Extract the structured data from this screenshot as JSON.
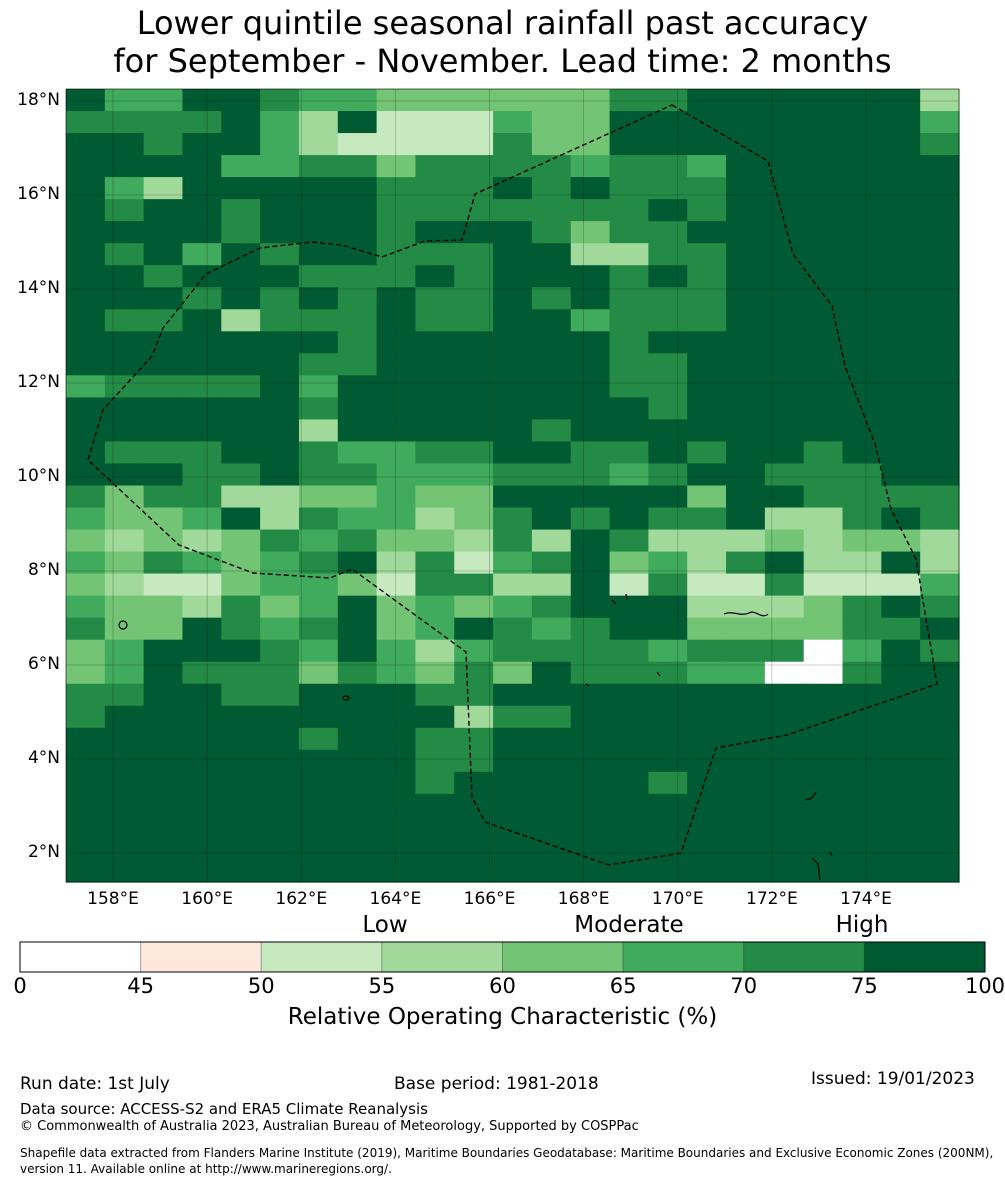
{
  "title_line1": "Lower quintile seasonal rainfall past accuracy",
  "title_line2": "for September - November. Lead time: 2 months",
  "map": {
    "lon_range": [
      157.0,
      176.0
    ],
    "lat_range": [
      1.4,
      18.3
    ],
    "lat_ticks": [
      "18°N",
      "16°N",
      "14°N",
      "12°N",
      "10°N",
      "8°N",
      "6°N",
      "4°N",
      "2°N"
    ],
    "lon_ticks": [
      "158°E",
      "160°E",
      "162°E",
      "164°E",
      "166°E",
      "168°E",
      "170°E",
      "172°E",
      "174°E"
    ],
    "grid_lines": true,
    "boundary": "dashed EEZ outline (approximate)",
    "cell_values_note": "grid of ROC categories (0-7), rows north to south",
    "cells": [
      "75577655444444667777773",
      "66667537222544777777775",
      "77677532222644777777776",
      "77775566466665665777777",
      "75377777666767666777777",
      "76776777666666676777777",
      "77776777677764667777777",
      "76757677666773366777777",
      "77677766676777676777777",
      "77767676766767666777777",
      "76673666766775666777777",
      "77777776777777677777777",
      "77777766777777667777777",
      "56666757777777667777777",
      "77777767777777767777777",
      "77777737777767777777777",
      "76667765566776676776777",
      "77766766555666567766677",
      "64663344544777774776666",
      "54457365534676766733676",
      "43434656443637633343443",
      "54654567362567453673373",
      "43224554266337262262225",
      "54436457454567773334676",
      "64476567457656774444667",
      "45777657535666656660576",
      "45766646546476665500677",
      "66776677766777777777777",
      "67777777773667777777777",
      "77777767766777777777777",
      "77777777766777777777777",
      "77777777767777767777777",
      "77777777777777777777777",
      "77777777777777777777777",
      "77777777777777777777777",
      "77777777777777777777777"
    ]
  },
  "colorbar": {
    "categories": [
      {
        "label": "Low"
      },
      {
        "label": "Moderate"
      },
      {
        "label": "High"
      }
    ],
    "ticks": [
      "0",
      "45",
      "50",
      "55",
      "60",
      "65",
      "70",
      "75",
      "100"
    ],
    "colors": [
      "#ffffff",
      "#fee8de",
      "#c7e9c0",
      "#a1d99b",
      "#74c476",
      "#41ab5d",
      "#238b45",
      "#005a32"
    ],
    "title": "Relative Operating Characteristic (%)"
  },
  "footer": {
    "run_date": "Run date: 1st July",
    "base_period": "Base period: 1981-2018",
    "issued": "Issued: 19/01/2023",
    "data_source": "Data source: ACCESS-S2 and ERA5 Climate Reanalysis",
    "copyright": "© Commonwealth of Australia 2023, Australian Bureau of Meteorology, Supported by COSPPac",
    "shapefile_line1": "Shapefile data extracted from Flanders Marine Institute (2019), Maritime Boundaries Geodatabase: Maritime Boundaries and Exclusive Economic Zones (200NM),",
    "shapefile_line2": "version 11. Available online at http://www.marineregions.org/."
  }
}
